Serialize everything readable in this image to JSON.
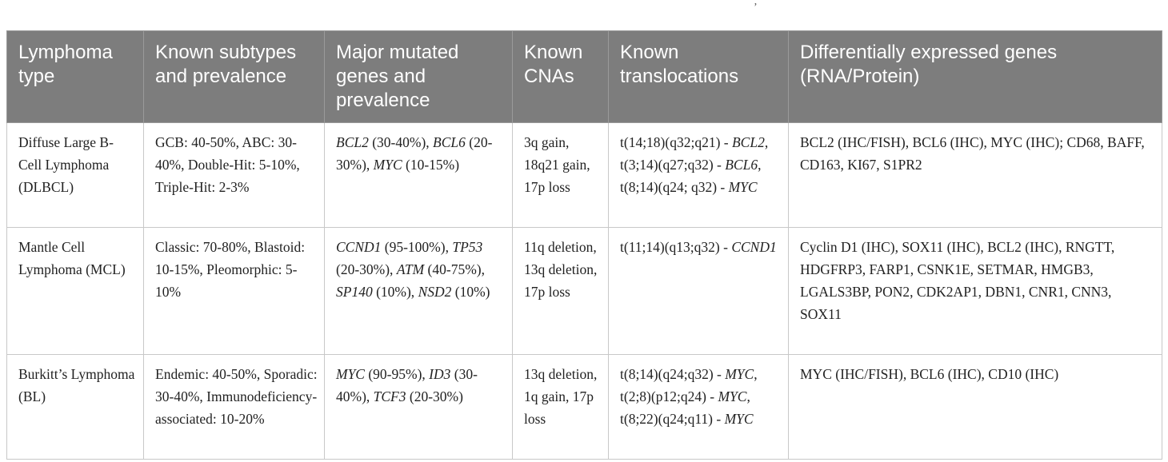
{
  "table": {
    "headers": [
      "Lymphoma type",
      "Known subtypes and prevalence",
      "Major mutated genes and prevalence",
      "Known CNAs",
      "Known translocations",
      "Differentially expressed genes (RNA/Protein)"
    ],
    "rows": [
      {
        "type": "Diffuse Large B-Cell Lymphoma (DLBCL)",
        "subtypes": "GCB: 40-50%, ABC: 30-40%, Double-Hit: 5-10%, Triple-Hit: 2-3%",
        "mutated": [
          {
            "gene": "BCL2",
            "value": " (30-40%), "
          },
          {
            "gene": "BCL6",
            "value": " (20-30%), "
          },
          {
            "gene": "MYC",
            "value": " (10-15%)"
          }
        ],
        "cnas": "3q gain, 18q21 gain, 17p loss",
        "translocations": [
          {
            "t": "t(14;18)(q32;q21) - ",
            "gene": "BCL2",
            "sep": ", "
          },
          {
            "t": "t(3;14)(q27;q32) - ",
            "gene": "BCL6",
            "sep": ", "
          },
          {
            "t": "t(8;14)(q24; q32) - ",
            "gene": "MYC",
            "sep": ""
          }
        ],
        "expressed": "BCL2 (IHC/FISH), BCL6 (IHC), MYC (IHC); CD68, BAFF, CD163, KI67, S1PR2"
      },
      {
        "type": "Mantle Cell Lymphoma (MCL)",
        "subtypes": "Classic: 70-80%, Blastoid: 10-15%, Pleomorphic: 5-10%",
        "mutated": [
          {
            "gene": "CCND1",
            "value": " (95-100%), "
          },
          {
            "gene": "TP53",
            "value": " (20-30%), "
          },
          {
            "gene": "ATM",
            "value": " (40-75%), "
          },
          {
            "gene": "SP140",
            "value": " (10%), "
          },
          {
            "gene": "NSD2",
            "value": " (10%)"
          }
        ],
        "cnas": "11q deletion, 13q deletion, 17p loss",
        "translocations": [
          {
            "t": "t(11;14)(q13;q32) - ",
            "gene": "CCND1",
            "sep": ""
          }
        ],
        "expressed": "Cyclin D1 (IHC), SOX11 (IHC), BCL2 (IHC), RNGTT, HDGFRP3, FARP1, CSNK1E, SETMAR, HMGB3, LGALS3BP, PON2, CDK2AP1, DBN1, CNR1, CNN3, SOX11"
      },
      {
        "type": "Burkitt’s Lymphoma (BL)",
        "subtypes": "Endemic: 40-50%, Sporadic: 30-40%, Immunodeficiency-associated: 10-20%",
        "mutated": [
          {
            "gene": "MYC",
            "value": " (90-95%), "
          },
          {
            "gene": "ID3",
            "value": " (30-40%), "
          },
          {
            "gene": "TCF3",
            "value": " (20-30%)"
          }
        ],
        "cnas": "13q deletion, 1q gain, 17p loss",
        "translocations": [
          {
            "t": "t(8;14)(q24;q32) - ",
            "gene": "MYC",
            "sep": ", "
          },
          {
            "t": "t(2;8)(p12;q24) - ",
            "gene": "MYC",
            "sep": ", "
          },
          {
            "t": "t(8;22)(q24;q11) - ",
            "gene": "MYC",
            "sep": ""
          }
        ],
        "expressed": "MYC (IHC/FISH), BCL6 (IHC), CD10 (IHC)"
      }
    ]
  },
  "stray_mark": "’"
}
